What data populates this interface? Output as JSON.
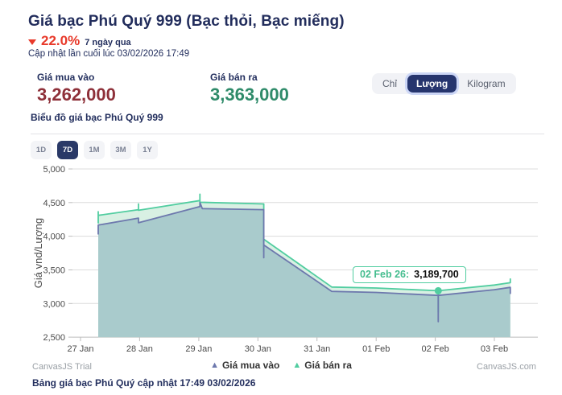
{
  "header": {
    "title": "Giá bạc Phú Quý 999 (Bạc thỏi, Bạc miếng)",
    "change_pct": "22.0%",
    "change_direction": "down",
    "change_period": "7 ngày qua",
    "updated": "Cập nhật lần cuối lúc 03/02/2026 17:49"
  },
  "prices": {
    "buy_label": "Giá mua vào",
    "buy_value": "3,262,000",
    "sell_label": "Giá bán ra",
    "sell_value": "3,363,000"
  },
  "unit_toggle": {
    "options": [
      "Chỉ",
      "Lượng",
      "Kilogram"
    ],
    "selected": "Lượng"
  },
  "chart_section": {
    "title": "Biểu đồ giá bạc Phú Quý 999"
  },
  "range_buttons": {
    "options": [
      "1D",
      "7D",
      "1M",
      "3M",
      "1Y"
    ],
    "selected": "7D"
  },
  "chart_data": {
    "type": "area",
    "title": "",
    "ylabel": "Giá vnd/Lượng",
    "x_labels": [
      "27 Jan",
      "28 Jan",
      "29 Jan",
      "30 Jan",
      "31 Jan",
      "01 Feb",
      "02 Feb",
      "03 Feb"
    ],
    "ylim": [
      2500,
      5000
    ],
    "yticks": [
      2500,
      3000,
      3500,
      4000,
      4500,
      5000
    ],
    "grid": true,
    "legend_position": "bottom-center",
    "values_in": "thousand vnd per luong",
    "series": [
      {
        "name": "Giá bán ra",
        "color": "#51CDA0",
        "fill": "#d8f0e3",
        "points": [
          [
            0.3,
            4190
          ],
          [
            0.3,
            4365
          ],
          [
            0.3,
            4310
          ],
          [
            0.98,
            4395
          ],
          [
            0.98,
            4480
          ],
          [
            0.98,
            4385
          ],
          [
            2.02,
            4530
          ],
          [
            2.02,
            4625
          ],
          [
            2.02,
            4505
          ],
          [
            3.1,
            4480
          ],
          [
            3.1,
            3770
          ],
          [
            3.1,
            3955
          ],
          [
            4.25,
            3245
          ],
          [
            5.0,
            3230
          ],
          [
            6.05,
            3190
          ],
          [
            6.05,
            2870
          ],
          [
            6.05,
            3190
          ],
          [
            7.0,
            3275
          ],
          [
            7.27,
            3310
          ],
          [
            7.27,
            3365
          ],
          [
            7.27,
            3310
          ]
        ]
      },
      {
        "name": "Giá mua vào",
        "color": "#6D78AD",
        "fill": "#a9cbcc",
        "points": [
          [
            0.3,
            4025
          ],
          [
            0.3,
            4165
          ],
          [
            0.98,
            4270
          ],
          [
            0.98,
            4200
          ],
          [
            2.02,
            4440
          ],
          [
            2.02,
            4500
          ],
          [
            2.06,
            4410
          ],
          [
            3.1,
            4395
          ],
          [
            3.1,
            3680
          ],
          [
            3.1,
            3870
          ],
          [
            4.25,
            3180
          ],
          [
            5.0,
            3165
          ],
          [
            6.05,
            3120
          ],
          [
            6.05,
            2730
          ],
          [
            6.05,
            3120
          ],
          [
            7.0,
            3205
          ],
          [
            7.27,
            3240
          ],
          [
            7.27,
            3150
          ],
          [
            7.27,
            3240
          ]
        ]
      }
    ],
    "marker": {
      "x": 6.05,
      "y": 3190,
      "color": "#51CDA0"
    }
  },
  "tooltip": {
    "label": "02 Feb 26:",
    "value": "3,189,700"
  },
  "legend": [
    {
      "label": "Giá mua vào",
      "color": "#6D78AD"
    },
    {
      "label": "Giá bán ra",
      "color": "#51CDA0"
    }
  ],
  "footer": {
    "trial": "CanvasJS Trial",
    "site": "CanvasJS.com",
    "caption": "Bảng giá bạc Phú Quý cập nhật 17:49 03/02/2026"
  },
  "colors": {
    "navy_text": "#232f5e",
    "red_change": "#e8392a",
    "buy_value": "#8e3039",
    "sell_value": "#2f8b6a",
    "series_buy": "#6D78AD",
    "series_sell": "#51CDA0",
    "selected_button_bg": "#26356e",
    "axis_label": "#4a4a4a",
    "gridline": "#dcdcdc"
  }
}
